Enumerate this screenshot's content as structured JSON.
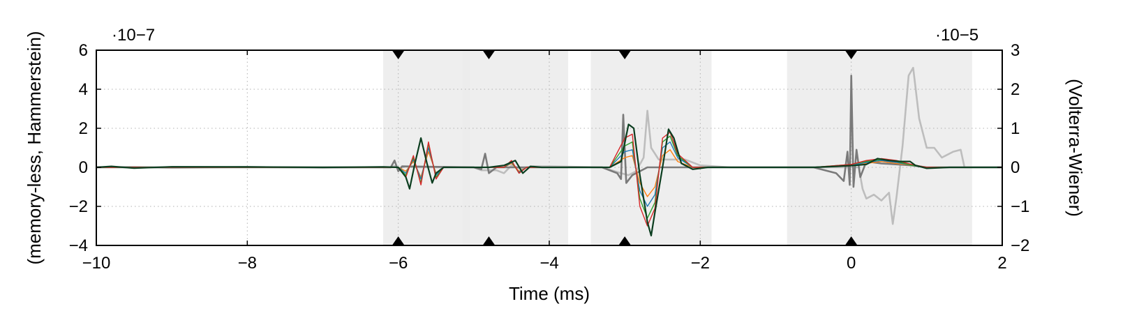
{
  "chart_data": {
    "type": "line",
    "xlabel": "Time (ms)",
    "ylabel_left": "(memory-less, Hammerstein)",
    "ylabel_right": "(Volterra-Wiener)",
    "left_scale_label": "·10−7",
    "right_scale_label": "·10−5",
    "xlim": [
      -10,
      2
    ],
    "ylim_left": [
      -4,
      6
    ],
    "ylim_right": [
      -2,
      3
    ],
    "x_ticks": [
      -10,
      -8,
      -6,
      -4,
      -2,
      0,
      2
    ],
    "x_tick_labels": [
      "−10",
      "−8",
      "−6",
      "−4",
      "−2",
      "0",
      "2"
    ],
    "y_left_ticks": [
      -4,
      -2,
      0,
      2,
      4,
      6
    ],
    "y_left_tick_labels": [
      "−4",
      "−2",
      "0",
      "2",
      "4",
      "6"
    ],
    "y_right_ticks": [
      -2,
      -1,
      0,
      1,
      2,
      3
    ],
    "y_right_tick_labels": [
      "−2",
      "−1",
      "0",
      "1",
      "2",
      "3"
    ],
    "grid": true,
    "shaded_regions": [
      {
        "x0": -6.2,
        "x1": -5.05
      },
      {
        "x0": -5.15,
        "x1": -3.75
      },
      {
        "x0": -3.45,
        "x1": -1.85
      },
      {
        "x0": -0.85,
        "x1": 1.6
      }
    ],
    "markers_x": [
      -6.0,
      -4.8,
      -3.0,
      0.0
    ],
    "colors": {
      "accent_dark_green": "#0b3d1f",
      "gray_dark": "#7a7a7a",
      "gray_light": "#bdbdbd",
      "shade": "#ebebeb"
    },
    "series": [
      {
        "color": "#bdbdbd",
        "points": [
          [
            -10,
            0
          ],
          [
            -9.5,
            0.02
          ],
          [
            -9,
            -0.03
          ],
          [
            -8,
            0.02
          ],
          [
            -7,
            -0.02
          ],
          [
            -6.4,
            0
          ],
          [
            -6.1,
            0
          ],
          [
            -6.05,
            0.06
          ],
          [
            -6,
            -0.05
          ],
          [
            -5.9,
            0.04
          ],
          [
            -5.8,
            0
          ],
          [
            -5,
            0
          ],
          [
            -4.9,
            -0.15
          ],
          [
            -4.7,
            -0.15
          ],
          [
            -4.6,
            -0.3
          ],
          [
            -4.5,
            0.1
          ],
          [
            -4.4,
            -0.05
          ],
          [
            -4.2,
            0.05
          ],
          [
            -4,
            0.05
          ],
          [
            -3.3,
            0
          ],
          [
            -3.05,
            -0.3
          ],
          [
            -2.95,
            -0.4
          ],
          [
            -2.85,
            -0.2
          ],
          [
            -2.75,
            0.5
          ],
          [
            -2.7,
            2.9
          ],
          [
            -2.65,
            1.0
          ],
          [
            -2.55,
            0.4
          ],
          [
            -2.4,
            0.4
          ],
          [
            -2.2,
            0.4
          ],
          [
            -2.0,
            0.1
          ],
          [
            -1.6,
            0
          ],
          [
            -0.2,
            0
          ],
          [
            0.1,
            0
          ],
          [
            0.15,
            -1.1
          ],
          [
            0.2,
            -1.6
          ],
          [
            0.3,
            -1.4
          ],
          [
            0.4,
            -1.7
          ],
          [
            0.5,
            -1.3
          ],
          [
            0.55,
            -2.9
          ],
          [
            0.6,
            -1.5
          ],
          [
            0.68,
            1.1
          ],
          [
            0.76,
            4.7
          ],
          [
            0.82,
            5.1
          ],
          [
            0.9,
            2.5
          ],
          [
            1.0,
            1.0
          ],
          [
            1.1,
            1.0
          ],
          [
            1.2,
            0.5
          ],
          [
            1.25,
            0.6
          ],
          [
            1.35,
            0.8
          ],
          [
            1.45,
            0.9
          ],
          [
            1.5,
            0
          ],
          [
            2,
            0
          ]
        ]
      },
      {
        "color": "#7a7a7a",
        "points": [
          [
            -10,
            0
          ],
          [
            -6.1,
            0
          ],
          [
            -6.05,
            0.35
          ],
          [
            -6,
            -0.2
          ],
          [
            -5.95,
            0.05
          ],
          [
            -5,
            0
          ],
          [
            -4.9,
            -0.1
          ],
          [
            -4.85,
            0.7
          ],
          [
            -4.8,
            -0.3
          ],
          [
            -4.7,
            0
          ],
          [
            -3.3,
            0
          ],
          [
            -3.1,
            -0.3
          ],
          [
            -3.05,
            -0.6
          ],
          [
            -3.02,
            2.7
          ],
          [
            -2.98,
            -0.8
          ],
          [
            -2.9,
            -0.4
          ],
          [
            -2.8,
            -0.2
          ],
          [
            -2.7,
            0
          ],
          [
            -0.5,
            0
          ],
          [
            -0.2,
            -0.3
          ],
          [
            -0.1,
            -0.7
          ],
          [
            -0.05,
            0.8
          ],
          [
            -0.02,
            -0.9
          ],
          [
            0,
            4.7
          ],
          [
            0.03,
            -1.0
          ],
          [
            0.07,
            0.9
          ],
          [
            0.12,
            -0.5
          ],
          [
            0.2,
            0.3
          ],
          [
            0.4,
            0.2
          ],
          [
            0.8,
            0.1
          ],
          [
            1.0,
            0
          ],
          [
            2,
            0
          ]
        ]
      },
      {
        "color": "#ff7f0e",
        "points": [
          [
            -10,
            0
          ],
          [
            -6,
            0
          ],
          [
            -5.9,
            -0.2
          ],
          [
            -5.8,
            0.3
          ],
          [
            -5.7,
            -0.5
          ],
          [
            -5.6,
            0.8
          ],
          [
            -5.5,
            -0.3
          ],
          [
            -5.4,
            0
          ],
          [
            -4.6,
            0
          ],
          [
            -4.5,
            0.2
          ],
          [
            -4.4,
            -0.2
          ],
          [
            -4.3,
            0
          ],
          [
            -3.2,
            0
          ],
          [
            -3.0,
            0.5
          ],
          [
            -2.9,
            0.6
          ],
          [
            -2.8,
            -0.8
          ],
          [
            -2.7,
            -1.5
          ],
          [
            -2.6,
            -1.0
          ],
          [
            -2.5,
            0.6
          ],
          [
            -2.4,
            0.9
          ],
          [
            -2.3,
            0.3
          ],
          [
            -2.1,
            0
          ],
          [
            -0.5,
            0
          ],
          [
            0,
            0.1
          ],
          [
            0.2,
            0.2
          ],
          [
            0.4,
            0.3
          ],
          [
            0.6,
            0.2
          ],
          [
            0.8,
            0.1
          ],
          [
            1.0,
            0
          ],
          [
            2,
            0
          ]
        ]
      },
      {
        "color": "#1f77b4",
        "points": [
          [
            -10,
            0
          ],
          [
            -6,
            0
          ],
          [
            -5.9,
            -0.3
          ],
          [
            -5.8,
            0.4
          ],
          [
            -5.7,
            -0.6
          ],
          [
            -5.6,
            1.0
          ],
          [
            -5.5,
            -0.4
          ],
          [
            -5.4,
            0
          ],
          [
            -4.6,
            0
          ],
          [
            -4.5,
            0.25
          ],
          [
            -4.4,
            -0.25
          ],
          [
            -4.3,
            0
          ],
          [
            -3.2,
            0
          ],
          [
            -3.0,
            0.8
          ],
          [
            -2.9,
            0.9
          ],
          [
            -2.8,
            -1.2
          ],
          [
            -2.7,
            -2.0
          ],
          [
            -2.6,
            -1.4
          ],
          [
            -2.5,
            1.0
          ],
          [
            -2.4,
            1.3
          ],
          [
            -2.3,
            0.5
          ],
          [
            -2.1,
            0
          ],
          [
            -0.5,
            0
          ],
          [
            0,
            0.1
          ],
          [
            0.2,
            0.25
          ],
          [
            0.4,
            0.35
          ],
          [
            0.6,
            0.25
          ],
          [
            0.8,
            0.1
          ],
          [
            1.0,
            0
          ],
          [
            2,
            0
          ]
        ]
      },
      {
        "color": "#2ca02c",
        "points": [
          [
            -10,
            0
          ],
          [
            -6,
            0
          ],
          [
            -5.9,
            -0.4
          ],
          [
            -5.8,
            0.5
          ],
          [
            -5.7,
            -0.8
          ],
          [
            -5.6,
            1.2
          ],
          [
            -5.5,
            -0.5
          ],
          [
            -5.4,
            0
          ],
          [
            -4.6,
            0
          ],
          [
            -4.5,
            0.3
          ],
          [
            -4.4,
            -0.3
          ],
          [
            -4.3,
            0
          ],
          [
            -3.2,
            0
          ],
          [
            -3.0,
            1.1
          ],
          [
            -2.9,
            1.3
          ],
          [
            -2.8,
            -1.6
          ],
          [
            -2.7,
            -2.6
          ],
          [
            -2.6,
            -1.8
          ],
          [
            -2.5,
            1.3
          ],
          [
            -2.4,
            1.6
          ],
          [
            -2.3,
            0.6
          ],
          [
            -2.1,
            0
          ],
          [
            -0.5,
            0
          ],
          [
            0,
            0.15
          ],
          [
            0.2,
            0.3
          ],
          [
            0.4,
            0.4
          ],
          [
            0.6,
            0.3
          ],
          [
            0.8,
            0.1
          ],
          [
            1.0,
            0
          ],
          [
            2,
            0
          ]
        ]
      },
      {
        "color": "#d62728",
        "points": [
          [
            -10,
            0
          ],
          [
            -6,
            0
          ],
          [
            -5.9,
            -0.5
          ],
          [
            -5.8,
            0.6
          ],
          [
            -5.7,
            -0.9
          ],
          [
            -5.6,
            1.3
          ],
          [
            -5.5,
            -0.6
          ],
          [
            -5.4,
            0
          ],
          [
            -4.6,
            0
          ],
          [
            -4.5,
            0.35
          ],
          [
            -4.4,
            -0.3
          ],
          [
            -4.3,
            0
          ],
          [
            -3.2,
            0
          ],
          [
            -3.0,
            1.5
          ],
          [
            -2.9,
            1.7
          ],
          [
            -2.8,
            -2.0
          ],
          [
            -2.7,
            -3.0
          ],
          [
            -2.6,
            -2.1
          ],
          [
            -2.5,
            1.5
          ],
          [
            -2.4,
            1.8
          ],
          [
            -2.3,
            0.7
          ],
          [
            -2.1,
            0
          ],
          [
            -0.5,
            0
          ],
          [
            0,
            0.15
          ],
          [
            0.2,
            0.35
          ],
          [
            0.4,
            0.45
          ],
          [
            0.6,
            0.35
          ],
          [
            0.8,
            0.15
          ],
          [
            1.0,
            0
          ],
          [
            2,
            0
          ]
        ]
      },
      {
        "color": "#0b3d1f",
        "points": [
          [
            -10,
            0
          ],
          [
            -9.8,
            0.05
          ],
          [
            -9.5,
            -0.04
          ],
          [
            -9,
            0.03
          ],
          [
            -8,
            0.02
          ],
          [
            -7,
            0
          ],
          [
            -6.2,
            0.02
          ],
          [
            -6.0,
            0
          ],
          [
            -5.9,
            -0.5
          ],
          [
            -5.85,
            -1.1
          ],
          [
            -5.78,
            0.2
          ],
          [
            -5.7,
            1.5
          ],
          [
            -5.62,
            0.2
          ],
          [
            -5.55,
            -0.8
          ],
          [
            -5.5,
            -0.3
          ],
          [
            -5.4,
            0
          ],
          [
            -4.8,
            0
          ],
          [
            -4.6,
            0.1
          ],
          [
            -4.45,
            0.35
          ],
          [
            -4.35,
            -0.3
          ],
          [
            -4.25,
            0.05
          ],
          [
            -4.1,
            0
          ],
          [
            -3.2,
            0
          ],
          [
            -3.05,
            0.3
          ],
          [
            -2.95,
            2.2
          ],
          [
            -2.88,
            2.0
          ],
          [
            -2.8,
            -0.4
          ],
          [
            -2.7,
            -2.8
          ],
          [
            -2.65,
            -3.5
          ],
          [
            -2.6,
            -2.3
          ],
          [
            -2.5,
            0
          ],
          [
            -2.42,
            1.95
          ],
          [
            -2.35,
            1.5
          ],
          [
            -2.25,
            0.2
          ],
          [
            -2.1,
            -0.1
          ],
          [
            -1.9,
            0
          ],
          [
            -0.5,
            0
          ],
          [
            -0.2,
            0.05
          ],
          [
            0.05,
            0.1
          ],
          [
            0.2,
            0.15
          ],
          [
            0.35,
            0.45
          ],
          [
            0.5,
            0.35
          ],
          [
            0.65,
            0.3
          ],
          [
            0.78,
            0.3
          ],
          [
            0.85,
            0.1
          ],
          [
            1.0,
            -0.05
          ],
          [
            1.3,
            0
          ],
          [
            2,
            0
          ]
        ]
      }
    ]
  }
}
